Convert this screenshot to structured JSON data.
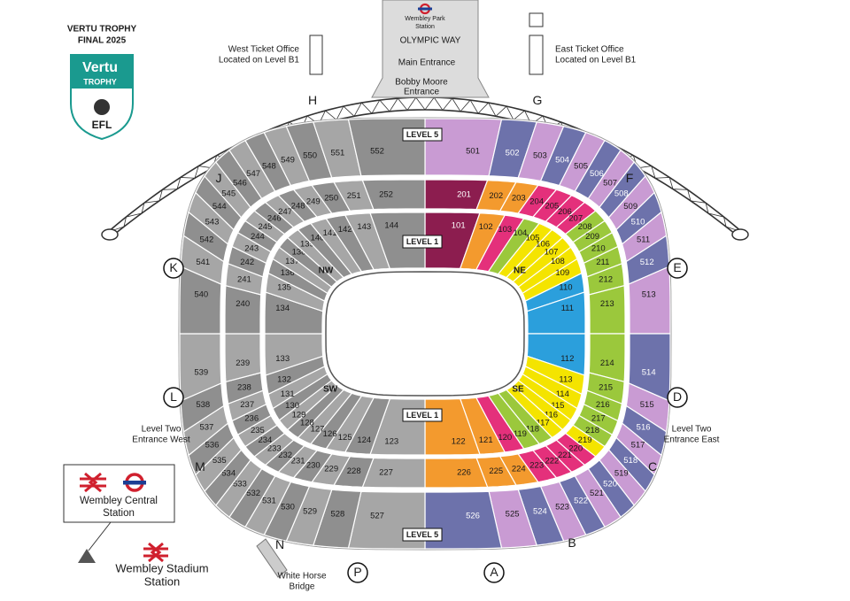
{
  "header": {
    "title": [
      "VERTU TROPHY",
      "FINAL 2025"
    ],
    "logo": {
      "brand": "Vertu",
      "trophy": "TROPHY",
      "league": "EFL"
    }
  },
  "approach": {
    "station": [
      "Wembley Park",
      "Station"
    ],
    "road": "OLYMPIC WAY",
    "main_entrance": "Main Entrance",
    "bobby_moore": [
      "Bobby Moore",
      "Entrance"
    ]
  },
  "ticket_offices": {
    "west": [
      "West Ticket Office",
      "Located on Level B1"
    ],
    "east": [
      "East Ticket Office",
      "Located on Level B1"
    ]
  },
  "entrances": {
    "west": [
      "Level Two",
      "Entrance West"
    ],
    "east": [
      "Level Two",
      "Entrance East"
    ]
  },
  "transport": {
    "wembley_central": [
      "Wembley Central",
      "Station"
    ],
    "wembley_stadium": [
      "Wembley Stadium",
      "Station"
    ],
    "bridge": [
      "White Horse",
      "Bridge"
    ]
  },
  "levels": {
    "top": "LEVEL 5",
    "upper_inner": "LEVEL 1",
    "lower_inner": "LEVEL 1",
    "bottom": "LEVEL 5"
  },
  "corners": [
    "NW",
    "NE",
    "SW",
    "SE"
  ],
  "gates": [
    {
      "letter": "H",
      "circled": false
    },
    {
      "letter": "G",
      "circled": false
    },
    {
      "letter": "J",
      "circled": false
    },
    {
      "letter": "F",
      "circled": false
    },
    {
      "letter": "K",
      "circled": true
    },
    {
      "letter": "E",
      "circled": true
    },
    {
      "letter": "L",
      "circled": true
    },
    {
      "letter": "D",
      "circled": true
    },
    {
      "letter": "M",
      "circled": false
    },
    {
      "letter": "C",
      "circled": false
    },
    {
      "letter": "N",
      "circled": false
    },
    {
      "letter": "B",
      "circled": false
    },
    {
      "letter": "P",
      "circled": true
    },
    {
      "letter": "A",
      "circled": true
    }
  ],
  "sections": {
    "level_1": [
      101,
      102,
      103,
      104,
      105,
      106,
      107,
      108,
      109,
      110,
      111,
      112,
      113,
      114,
      115,
      116,
      117,
      118,
      119,
      120,
      121,
      122,
      123,
      124,
      125,
      126,
      127,
      128,
      129,
      130,
      131,
      132,
      133,
      134,
      135,
      136,
      137,
      138,
      139,
      140,
      141,
      142,
      143,
      144
    ],
    "level_2": [
      201,
      202,
      203,
      204,
      205,
      206,
      207,
      208,
      209,
      210,
      211,
      212,
      213,
      214,
      215,
      216,
      217,
      218,
      219,
      220,
      221,
      222,
      223,
      224,
      225,
      226,
      227,
      228,
      229,
      230,
      231,
      232,
      233,
      234,
      235,
      236,
      237,
      238,
      239,
      240,
      241,
      242,
      243,
      244,
      245,
      246,
      247,
      248,
      249,
      250,
      251,
      252
    ],
    "level_5": [
      501,
      502,
      503,
      504,
      505,
      506,
      507,
      508,
      509,
      510,
      511,
      512,
      513,
      514,
      515,
      516,
      517,
      518,
      519,
      520,
      521,
      522,
      523,
      524,
      525,
      526,
      527,
      528,
      529,
      530,
      531,
      532,
      533,
      534,
      535,
      536,
      537,
      538,
      539,
      540,
      541,
      542,
      543,
      544,
      545,
      546,
      547,
      548,
      549,
      550,
      551,
      552
    ]
  }
}
